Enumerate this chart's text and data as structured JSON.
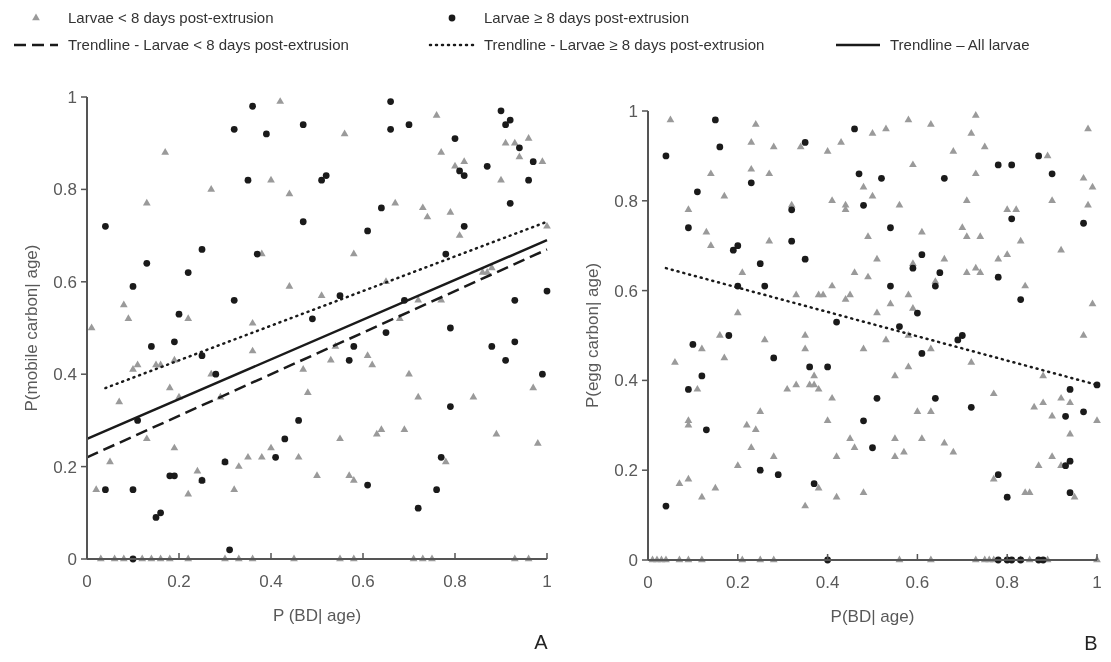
{
  "chart_data": [
    {
      "type": "scatter",
      "xlabel": "P (BD| age)",
      "ylabel": "P(mobile carbon| age)",
      "xlim": [
        0,
        1
      ],
      "ylim": [
        0,
        1
      ],
      "xticks": [
        0,
        0.2,
        0.4,
        0.6,
        0.8,
        1
      ],
      "yticks": [
        0,
        0.2,
        0.4,
        0.6,
        0.8,
        1
      ],
      "legend": "top",
      "annotations": [
        "A"
      ],
      "series": [
        {
          "name": "Larvae < 8 days post-extrusion",
          "marker": "triangle",
          "color": "#9a9a9a",
          "x": [
            0.01,
            0.02,
            0.05,
            0.07,
            0.08,
            0.09,
            0.1,
            0.11,
            0.13,
            0.13,
            0.15,
            0.16,
            0.17,
            0.18,
            0.19,
            0.19,
            0.2,
            0.22,
            0.22,
            0.24,
            0.25,
            0.27,
            0.27,
            0.29,
            0.3,
            0.32,
            0.33,
            0.35,
            0.36,
            0.36,
            0.38,
            0.38,
            0.4,
            0.4,
            0.42,
            0.44,
            0.44,
            0.46,
            0.47,
            0.48,
            0.5,
            0.51,
            0.53,
            0.54,
            0.55,
            0.56,
            0.57,
            0.58,
            0.58,
            0.61,
            0.62,
            0.63,
            0.64,
            0.65,
            0.67,
            0.68,
            0.69,
            0.7,
            0.72,
            0.72,
            0.73,
            0.74,
            0.76,
            0.77,
            0.77,
            0.78,
            0.79,
            0.8,
            0.81,
            0.82,
            0.84,
            0.86,
            0.87,
            0.88,
            0.89,
            0.9,
            0.91,
            0.93,
            0.94,
            0.96,
            0.97,
            0.98,
            0.99,
            1,
            0.03,
            0.06,
            0.08,
            0.12,
            0.14,
            0.16,
            0.18,
            0.22,
            0.3,
            0.33,
            0.36,
            0.45,
            0.55,
            0.58,
            0.71,
            0.73,
            0.75,
            0.93,
            0.96
          ],
          "values": [
            0.5,
            0.15,
            0.21,
            0.34,
            0.55,
            0.52,
            0.41,
            0.42,
            0.77,
            0.26,
            0.42,
            0.42,
            0.88,
            0.37,
            0.43,
            0.24,
            0.35,
            0.14,
            0.52,
            0.19,
            0.17,
            0.8,
            0.4,
            0.35,
            0.21,
            0.15,
            0.2,
            0.22,
            0.51,
            0.45,
            0.66,
            0.22,
            0.82,
            0.24,
            0.99,
            0.79,
            0.59,
            0.22,
            0.41,
            0.36,
            0.18,
            0.57,
            0.43,
            0.46,
            0.26,
            0.92,
            0.18,
            0.66,
            0.17,
            0.44,
            0.42,
            0.27,
            0.28,
            0.6,
            0.77,
            0.52,
            0.28,
            0.4,
            0.35,
            0.56,
            0.76,
            0.74,
            0.96,
            0.88,
            0.56,
            0.21,
            0.75,
            0.85,
            0.7,
            0.86,
            0.35,
            0.62,
            0.62,
            0.63,
            0.27,
            0.82,
            0.9,
            0.9,
            0.87,
            0.91,
            0.37,
            0.25,
            0.86,
            0.72,
            0,
            0,
            0,
            0,
            0,
            0,
            0,
            0,
            0,
            0,
            0,
            0,
            0,
            0,
            0,
            0,
            0,
            0,
            0
          ]
        },
        {
          "name": "Larvae ≥ 8 days post-extrusion",
          "marker": "circle",
          "color": "#1a1a1a",
          "x": [
            0.04,
            0.04,
            0.1,
            0.1,
            0.11,
            0.1,
            0.13,
            0.14,
            0.15,
            0.16,
            0.18,
            0.19,
            0.19,
            0.2,
            0.22,
            0.25,
            0.25,
            0.25,
            0.28,
            0.3,
            0.31,
            0.32,
            0.32,
            0.35,
            0.36,
            0.37,
            0.39,
            0.41,
            0.43,
            0.46,
            0.47,
            0.47,
            0.49,
            0.51,
            0.52,
            0.55,
            0.57,
            0.58,
            0.61,
            0.61,
            0.64,
            0.65,
            0.66,
            0.66,
            0.69,
            0.7,
            0.72,
            0.76,
            0.77,
            0.78,
            0.79,
            0.79,
            0.8,
            0.81,
            0.82,
            0.82,
            0.87,
            0.88,
            0.9,
            0.91,
            0.91,
            0.92,
            0.92,
            0.93,
            0.93,
            0.94,
            0.96,
            0.97,
            0.99,
            1
          ],
          "values": [
            0.72,
            0.15,
            0.59,
            0.15,
            0.3,
            0,
            0.64,
            0.46,
            0.09,
            0.1,
            0.18,
            0.18,
            0.47,
            0.53,
            0.62,
            0.67,
            0.17,
            0.44,
            0.4,
            0.21,
            0.02,
            0.56,
            0.93,
            0.82,
            0.98,
            0.66,
            0.92,
            0.22,
            0.26,
            0.3,
            0.73,
            0.94,
            0.52,
            0.82,
            0.83,
            0.57,
            0.43,
            0.46,
            0.71,
            0.16,
            0.76,
            0.49,
            0.99,
            0.93,
            0.56,
            0.94,
            0.11,
            0.15,
            0.22,
            0.66,
            0.33,
            0.5,
            0.91,
            0.84,
            0.83,
            0.72,
            0.85,
            0.46,
            0.97,
            0.43,
            0.94,
            0.95,
            0.77,
            0.47,
            0.56,
            0.89,
            0.82,
            0.86,
            0.4,
            0.58
          ]
        },
        {
          "name": "Trendline - Larvae < 8 days post-extrusion",
          "type": "line",
          "line_style": "dashed",
          "color": "#1a1a1a",
          "x": [
            0,
            1
          ],
          "values": [
            0.22,
            0.67
          ]
        },
        {
          "name": "Trendline - Larvae ≥ 8 days post-extrusion",
          "type": "line",
          "line_style": "dotted",
          "color": "#1a1a1a",
          "x": [
            0.04,
            1
          ],
          "values": [
            0.37,
            0.73
          ]
        },
        {
          "name": "Trendline – All larvae",
          "type": "line",
          "line_style": "solid",
          "color": "#1a1a1a",
          "x": [
            0,
            1
          ],
          "values": [
            0.26,
            0.69
          ]
        }
      ]
    },
    {
      "type": "scatter",
      "xlabel": "P(BD| age)",
      "ylabel": "P(egg carbon| age)",
      "xlim": [
        0,
        1
      ],
      "ylim": [
        0,
        1
      ],
      "xticks": [
        0,
        0.2,
        0.4,
        0.6,
        0.8,
        1
      ],
      "yticks": [
        0,
        0.2,
        0.4,
        0.6,
        0.8,
        1
      ],
      "annotations": [
        "B"
      ],
      "series": [
        {
          "marker": "triangle",
          "color": "#9a9a9a",
          "x": [
            0.05,
            0.06,
            0.07,
            0.09,
            0.09,
            0.09,
            0.09,
            0.11,
            0.12,
            0.12,
            0.13,
            0.14,
            0.14,
            0.15,
            0.17,
            0.17,
            0.16,
            0.2,
            0.2,
            0.21,
            0.22,
            0.23,
            0.23,
            0.24,
            0.23,
            0.24,
            0.25,
            0.26,
            0.27,
            0.28,
            0.27,
            0.28,
            0.31,
            0.32,
            0.33,
            0.33,
            0.34,
            0.35,
            0.35,
            0.35,
            0.36,
            0.37,
            0.37,
            0.38,
            0.38,
            0.38,
            0.39,
            0.4,
            0.4,
            0.41,
            0.41,
            0.41,
            0.42,
            0.42,
            0.43,
            0.44,
            0.44,
            0.5,
            0.53,
            0.58,
            0.63,
            0.73,
            0.72,
            0.75,
            0.68,
            0.59,
            0.73,
            0.48,
            0.5,
            0.44,
            0.56,
            0.71,
            0.8,
            0.82,
            0.9,
            0.97,
            0.99,
            0.98,
            0.98,
            0.89,
            0.49,
            0.61,
            0.7,
            0.71,
            0.74,
            0.83,
            0.51,
            0.59,
            0.66,
            0.78,
            0.8,
            0.92,
            0.46,
            0.49,
            0.71,
            0.73,
            0.74,
            0.84,
            0.45,
            0.54,
            0.58,
            0.59,
            0.64,
            0.51,
            0.99,
            0.53,
            0.58,
            0.97,
            0.48,
            0.63,
            0.72,
            0.58,
            0.55,
            0.88,
            0.77,
            0.92,
            0.6,
            0.63,
            0.86,
            0.88,
            0.9,
            0.94,
            1,
            0.94,
            0.45,
            0.46,
            0.55,
            0.61,
            0.66,
            0.68,
            0.57,
            0.55,
            0.9,
            0.87,
            0.92,
            0.77,
            0.84,
            0.85,
            0.95,
            0.48,
            0.01,
            0.02,
            0.03,
            0.04,
            0.07,
            0.09,
            0.12,
            0.21,
            0.25,
            0.28,
            0.56,
            0.63,
            0.73,
            0.75,
            0.76,
            0.77,
            0.83,
            0.85,
            0.89,
            1
          ],
          "values": [
            0.98,
            0.44,
            0.17,
            0.78,
            0.18,
            0.31,
            0.3,
            0.38,
            0.47,
            0.14,
            0.73,
            0.7,
            0.86,
            0.16,
            0.81,
            0.45,
            0.5,
            0.55,
            0.21,
            0.64,
            0.3,
            0.87,
            0.93,
            0.97,
            0.25,
            0.29,
            0.33,
            0.49,
            0.86,
            0.92,
            0.71,
            0.23,
            0.38,
            0.79,
            0.59,
            0.39,
            0.92,
            0.5,
            0.47,
            0.12,
            0.39,
            0.39,
            0.41,
            0.38,
            0.16,
            0.59,
            0.59,
            0.91,
            0.31,
            0.8,
            0.61,
            0.36,
            0.23,
            0.14,
            0.93,
            0.79,
            0.58,
            0.95,
            0.96,
            0.98,
            0.97,
            0.99,
            0.95,
            0.92,
            0.91,
            0.88,
            0.86,
            0.83,
            0.81,
            0.78,
            0.79,
            0.8,
            0.78,
            0.78,
            0.8,
            0.85,
            0.83,
            0.79,
            0.96,
            0.9,
            0.72,
            0.73,
            0.74,
            0.72,
            0.72,
            0.71,
            0.67,
            0.66,
            0.67,
            0.67,
            0.68,
            0.69,
            0.64,
            0.63,
            0.64,
            0.65,
            0.64,
            0.61,
            0.59,
            0.57,
            0.59,
            0.56,
            0.62,
            0.55,
            0.57,
            0.49,
            0.5,
            0.5,
            0.47,
            0.47,
            0.44,
            0.43,
            0.41,
            0.41,
            0.37,
            0.36,
            0.33,
            0.33,
            0.34,
            0.35,
            0.32,
            0.35,
            0.31,
            0.28,
            0.27,
            0.25,
            0.27,
            0.27,
            0.26,
            0.24,
            0.24,
            0.23,
            0.23,
            0.21,
            0.21,
            0.18,
            0.15,
            0.15,
            0.14,
            0.15,
            0,
            0,
            0,
            0,
            0,
            0,
            0,
            0,
            0,
            0,
            0,
            0,
            0,
            0,
            0,
            0,
            0,
            0,
            0,
            0
          ]
        },
        {
          "marker": "circle",
          "color": "#1a1a1a",
          "x": [
            0.04,
            0.04,
            0.15,
            0.16,
            0.11,
            0.09,
            0.1,
            0.09,
            0.12,
            0.13,
            0.19,
            0.2,
            0.2,
            0.18,
            0.23,
            0.25,
            0.26,
            0.25,
            0.29,
            0.28,
            0.32,
            0.32,
            0.35,
            0.35,
            0.36,
            0.37,
            0.4,
            0.42,
            0.46,
            0.47,
            0.52,
            0.48,
            0.54,
            0.61,
            0.59,
            0.65,
            0.64,
            0.54,
            0.6,
            0.56,
            0.69,
            0.7,
            0.61,
            0.66,
            0.78,
            0.81,
            0.87,
            0.9,
            0.81,
            0.97,
            0.78,
            0.83,
            1,
            0.94,
            0.51,
            0.64,
            0.72,
            0.97,
            0.93,
            0.48,
            0.5,
            0.78,
            0.93,
            0.94,
            0.94,
            0.8,
            0.4,
            0.78,
            0.8,
            0.81,
            0.83,
            0.87,
            0.88
          ],
          "values": [
            0.9,
            0.12,
            0.98,
            0.92,
            0.82,
            0.74,
            0.48,
            0.38,
            0.41,
            0.29,
            0.69,
            0.7,
            0.61,
            0.5,
            0.84,
            0.66,
            0.61,
            0.2,
            0.19,
            0.45,
            0.78,
            0.71,
            0.67,
            0.93,
            0.43,
            0.17,
            0.43,
            0.53,
            0.96,
            0.86,
            0.85,
            0.79,
            0.74,
            0.68,
            0.65,
            0.64,
            0.61,
            0.61,
            0.55,
            0.52,
            0.49,
            0.5,
            0.46,
            0.85,
            0.88,
            0.88,
            0.9,
            0.86,
            0.76,
            0.75,
            0.63,
            0.58,
            0.39,
            0.38,
            0.36,
            0.36,
            0.34,
            0.33,
            0.32,
            0.31,
            0.25,
            0.19,
            0.21,
            0.22,
            0.15,
            0.14,
            0,
            0,
            0,
            0,
            0,
            0,
            0
          ]
        },
        {
          "type": "line",
          "line_style": "dotted",
          "color": "#1a1a1a",
          "x": [
            0.04,
            1
          ],
          "values": [
            0.65,
            0.39
          ]
        }
      ]
    }
  ]
}
